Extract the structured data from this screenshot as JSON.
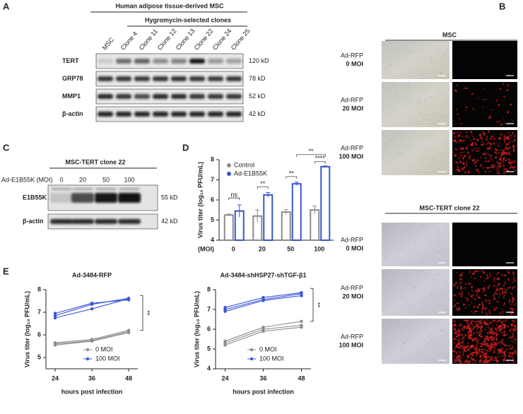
{
  "panels": {
    "a": {
      "label": "A",
      "title": "Human adipose tissue-derived MSC",
      "subtitle": "Hygromycin-selected clones",
      "lanes": [
        "MSC",
        "Clone 4",
        "Clone 11",
        "Clone 12",
        "Clone 13",
        "Clone 22",
        "Clone 24",
        "Clone 25"
      ],
      "rows": [
        {
          "name": "TERT",
          "size": "120 kD"
        },
        {
          "name": "GRP78",
          "size": "78 kD"
        },
        {
          "name": "MMP1",
          "size": "52 kD"
        },
        {
          "name": "β-actin",
          "size": "42 kD"
        }
      ]
    },
    "b": {
      "label": "B",
      "groups": [
        {
          "title": "MSC",
          "rows": [
            {
              "virus": "Ad-RFP",
              "dose": "0 MOI"
            },
            {
              "virus": "Ad-RFP",
              "dose": "20 MOI"
            },
            {
              "virus": "Ad-RFP",
              "dose": "100 MOI"
            }
          ]
        },
        {
          "title": "MSC-TERT clone 22",
          "rows": [
            {
              "virus": "Ad-RFP",
              "dose": "0 MOI"
            },
            {
              "virus": "Ad-RFP",
              "dose": "20 MOI"
            },
            {
              "virus": "Ad-RFP",
              "dose": "100 MOI"
            }
          ]
        }
      ]
    },
    "c": {
      "label": "C",
      "title": "MSC-TERT clone 22",
      "lane_header": "Ad-E1B55K (MOI)",
      "lanes": [
        "0",
        "20",
        "50",
        "100"
      ],
      "rows": [
        {
          "name": "E1B55K",
          "size": "55 kD"
        },
        {
          "name": "β-actin",
          "size": "42 kD"
        }
      ]
    },
    "d": {
      "label": "D"
    },
    "e": {
      "label": "E"
    }
  },
  "chart_data": [
    {
      "type": "bar",
      "ylabel": "Virus titer (log₁₀ PFU/mL)",
      "xlabel": "(MOI)",
      "categories": [
        "0",
        "20",
        "50",
        "100"
      ],
      "series": [
        {
          "name": "Control",
          "color": "#8c8c8c",
          "values": [
            5.25,
            5.2,
            5.4,
            5.5
          ],
          "errors": [
            0.05,
            0.3,
            0.12,
            0.2
          ]
        },
        {
          "name": "Ad-E1B55K",
          "color": "#3a55d6",
          "values": [
            5.45,
            6.25,
            6.8,
            7.65
          ],
          "errors": [
            0.3,
            0.12,
            0.08,
            0.04
          ]
        }
      ],
      "annotations": [
        "ns",
        "**",
        "**",
        "****",
        "**"
      ],
      "ylim": [
        4,
        8
      ],
      "yticks": [
        4,
        5,
        6,
        7,
        8
      ]
    },
    {
      "type": "line",
      "title": "Ad-3484-RFP",
      "xlabel": "hours post infection",
      "ylabel": "Virus titer (log₁₀ PFU/mL)",
      "x": [
        24,
        36,
        48
      ],
      "xlim": [
        21,
        51
      ],
      "xticks": [
        24,
        36,
        48
      ],
      "ylim": [
        4.5,
        8
      ],
      "yticks": [
        5,
        6,
        7,
        8
      ],
      "series": [
        {
          "name": "0 MOI",
          "color": "#8c8c8c",
          "values": [
            [
              5.65,
              5.8,
              6.2
            ],
            [
              5.6,
              5.75,
              6.15
            ],
            [
              5.55,
              5.72,
              6.1
            ]
          ]
        },
        {
          "name": "100 MOI",
          "color": "#3a55d6",
          "values": [
            [
              6.95,
              7.4,
              7.55
            ],
            [
              6.85,
              7.35,
              7.62
            ],
            [
              6.75,
              7.15,
              7.6
            ]
          ]
        }
      ],
      "annotation": "**"
    },
    {
      "type": "line",
      "title": "Ad-3484-shHSP27-shTGF-β1",
      "xlabel": "hours post infection",
      "ylabel": "Virus titer (log₁₀ PFU/mL)",
      "x": [
        24,
        36,
        48
      ],
      "xlim": [
        21,
        51
      ],
      "xticks": [
        24,
        36,
        48
      ],
      "ylim": [
        4,
        8
      ],
      "yticks": [
        4,
        5,
        6,
        7,
        8
      ],
      "series": [
        {
          "name": "0 MOI",
          "color": "#8c8c8c",
          "values": [
            [
              5.4,
              6.1,
              6.4
            ],
            [
              5.3,
              6.0,
              6.2
            ],
            [
              5.2,
              5.9,
              6.1
            ]
          ]
        },
        {
          "name": "100 MOI",
          "color": "#3a55d6",
          "values": [
            [
              7.1,
              7.6,
              7.85
            ],
            [
              7.0,
              7.5,
              7.8
            ],
            [
              6.9,
              7.45,
              7.7
            ]
          ]
        }
      ],
      "annotation": "**"
    }
  ]
}
